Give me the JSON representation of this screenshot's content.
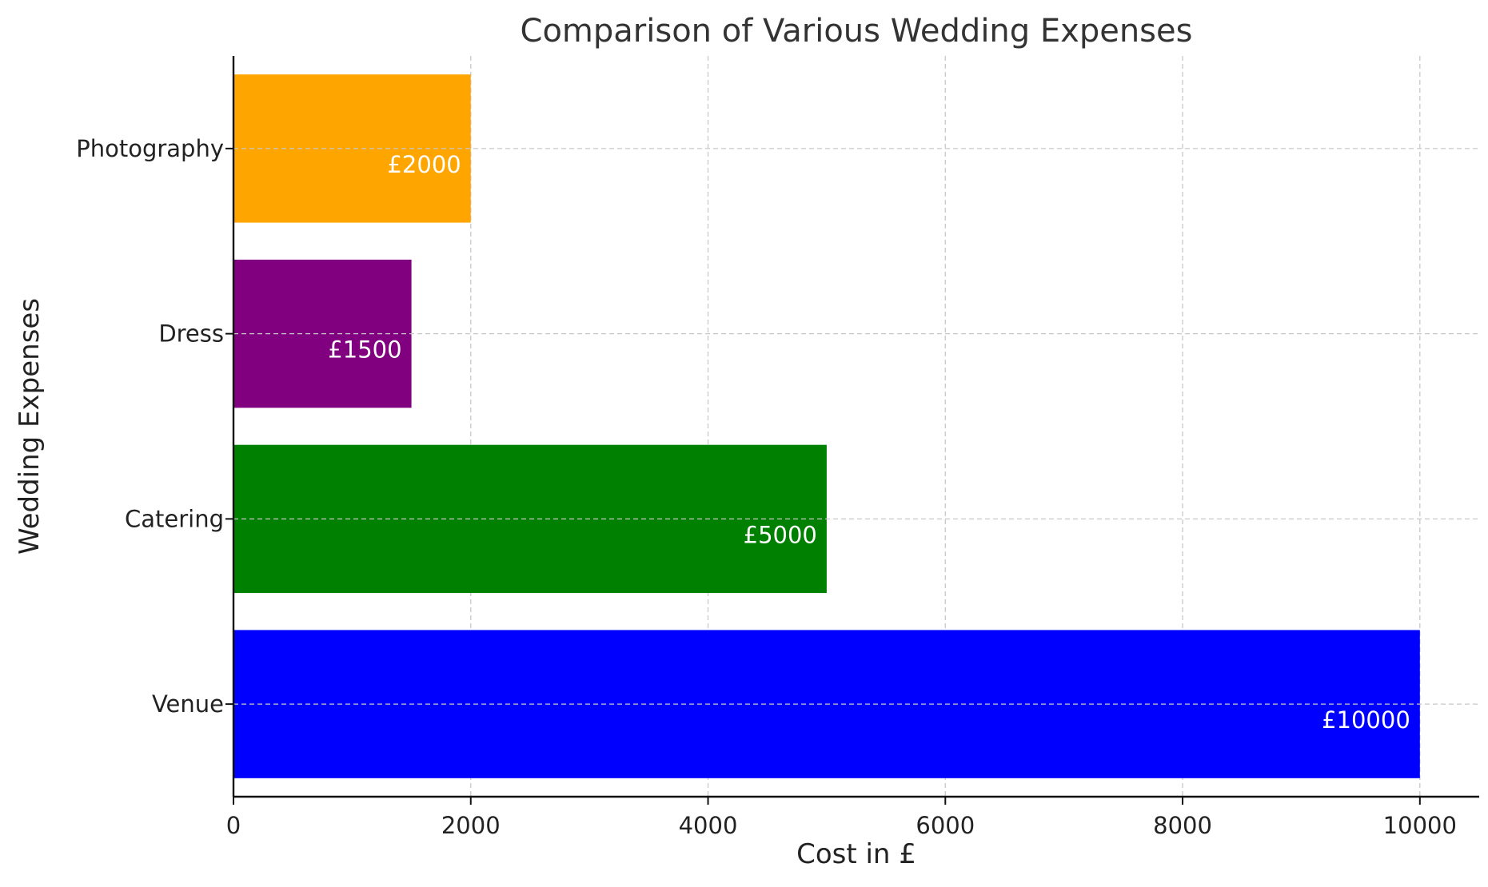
{
  "chart_data": {
    "type": "bar",
    "orientation": "horizontal",
    "title": "Comparison of Various Wedding Expenses",
    "xlabel": "Cost in £",
    "ylabel": "Wedding Expenses",
    "categories": [
      "Venue",
      "Catering",
      "Dress",
      "Photography"
    ],
    "values": [
      10000,
      5000,
      1500,
      2000
    ],
    "value_labels": [
      "£10000",
      "£5000",
      "£1500",
      "£2000"
    ],
    "colors": [
      "#0000ff",
      "#008000",
      "#800080",
      "#ffa500"
    ],
    "xlim": [
      0,
      10500
    ],
    "xticks": [
      0,
      2000,
      4000,
      6000,
      8000,
      10000
    ],
    "xtick_labels": [
      "0",
      "2000",
      "4000",
      "6000",
      "8000",
      "10000"
    ],
    "grid": true,
    "legend": "none"
  }
}
